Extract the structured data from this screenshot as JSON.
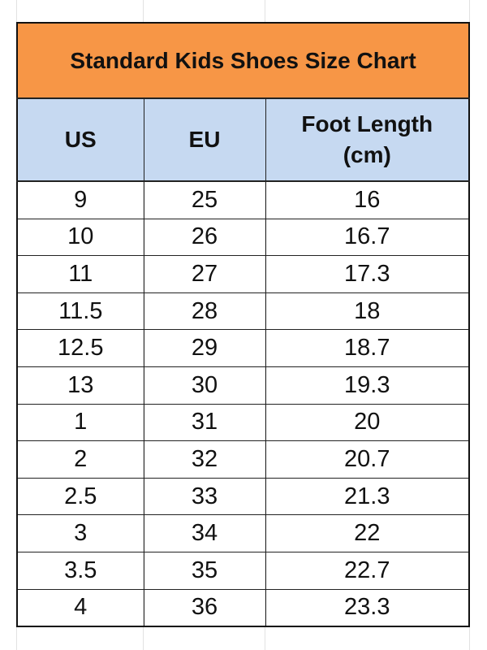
{
  "title": "Standard Kids Shoes Size Chart",
  "colors": {
    "title_bg": "#F79646",
    "header_bg": "#C6D9F1"
  },
  "columns": [
    "US",
    "EU",
    "Foot Length (cm)"
  ],
  "header": {
    "us": "US",
    "eu": "EU",
    "foot_line1": "Foot Length",
    "foot_line2": "(cm)"
  },
  "rows": [
    [
      "9",
      "25",
      "16"
    ],
    [
      "10",
      "26",
      "16.7"
    ],
    [
      "11",
      "27",
      "17.3"
    ],
    [
      "11.5",
      "28",
      "18"
    ],
    [
      "12.5",
      "29",
      "18.7"
    ],
    [
      "13",
      "30",
      "19.3"
    ],
    [
      "1",
      "31",
      "20"
    ],
    [
      "2",
      "32",
      "20.7"
    ],
    [
      "2.5",
      "33",
      "21.3"
    ],
    [
      "3",
      "34",
      "22"
    ],
    [
      "3.5",
      "35",
      "22.7"
    ],
    [
      "4",
      "36",
      "23.3"
    ]
  ]
}
